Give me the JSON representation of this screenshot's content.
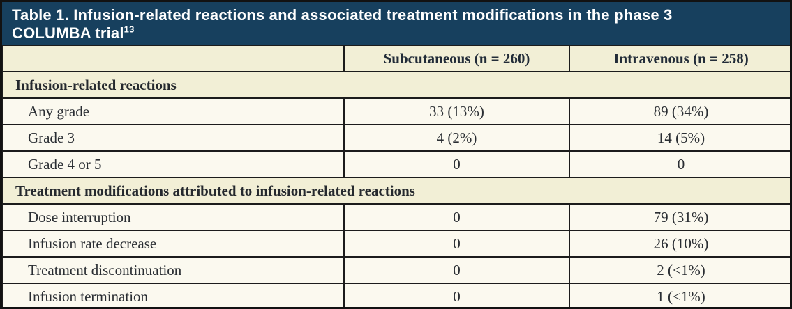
{
  "table": {
    "title_line1": "Table 1. Infusion-related reactions and associated treatment modifications in the phase 3",
    "title_line2": "COLUMBA trial",
    "title_citation": "13",
    "columns": [
      "Subcutaneous (n = 260)",
      "Intravenous (n = 258)"
    ],
    "sections": [
      {
        "header": "Infusion-related reactions",
        "rows": [
          {
            "label": "Any grade",
            "subcutaneous": "33 (13%)",
            "intravenous": "89 (34%)"
          },
          {
            "label": "Grade 3",
            "subcutaneous": "4 (2%)",
            "intravenous": "14 (5%)"
          },
          {
            "label": "Grade 4 or 5",
            "subcutaneous": "0",
            "intravenous": "0"
          }
        ]
      },
      {
        "header": "Treatment modifications attributed to infusion-related reactions",
        "rows": [
          {
            "label": "Dose interruption",
            "subcutaneous": "0",
            "intravenous": "79 (31%)"
          },
          {
            "label": "Infusion rate decrease",
            "subcutaneous": "0",
            "intravenous": "26 (10%)"
          },
          {
            "label": "Treatment discontinuation",
            "subcutaneous": "0",
            "intravenous": "2 (<1%)"
          },
          {
            "label": "Infusion termination",
            "subcutaneous": "0",
            "intravenous": "1 (<1%)"
          }
        ]
      }
    ],
    "colors": {
      "title_bar_bg": "#17405e",
      "title_text": "#ffffff",
      "header_row_bg": "#f2efd6",
      "data_row_bg": "#fbf9ef",
      "border": "#1c1c1c"
    }
  }
}
